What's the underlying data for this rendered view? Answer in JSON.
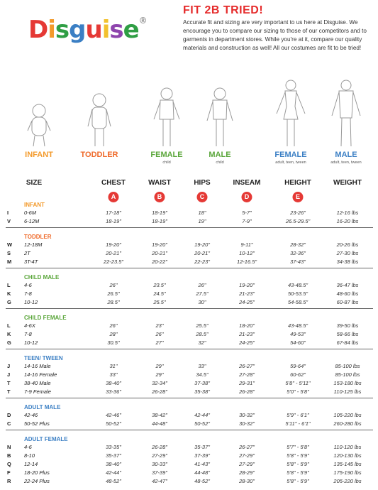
{
  "header": {
    "logo": "Disguise®",
    "title": "FIT 2B TRIED!",
    "text": "Accurate fit and sizing are very important to us here at Disguise. We encourage you to compare our sizing to those of our competitors and to garments in department stores. While you're at it, compare our quality materials and construction as well! All our costumes are fit to be tried!"
  },
  "figures": [
    {
      "label": "INFANT",
      "color": "#f39a2b"
    },
    {
      "label": "TODDLER",
      "color": "#ef6a2a"
    },
    {
      "label": "FEMALE",
      "sub": "child",
      "color": "#5aa63a"
    },
    {
      "label": "MALE",
      "sub": "child",
      "color": "#5aa63a"
    },
    {
      "label": "FEMALE",
      "sub": "adult, teen, tween",
      "color": "#3b7fc4"
    },
    {
      "label": "MALE",
      "sub": "adult, teen, tween",
      "color": "#3b7fc4"
    }
  ],
  "table": {
    "size_header": "SIZE",
    "columns": [
      {
        "name": "CHEST",
        "letter": "A"
      },
      {
        "name": "WAIST",
        "letter": "B"
      },
      {
        "name": "HIPS",
        "letter": "C"
      },
      {
        "name": "INSEAM",
        "letter": "D"
      },
      {
        "name": "HEIGHT",
        "letter": "E"
      },
      {
        "name": "WEIGHT"
      }
    ],
    "sections": [
      {
        "name": "INFANT",
        "color": "#f39a2b",
        "rows": [
          {
            "code": "I",
            "size": "0-6M",
            "values": [
              "17-18\"",
              "18-19\"",
              "18\"",
              "5-7\"",
              "23-26\"",
              "12-16 lbs"
            ]
          },
          {
            "code": "V",
            "size": "6-12M",
            "values": [
              "18-19\"",
              "18-19\"",
              "19\"",
              "7-9\"",
              "26.5-29.5\"",
              "16-20 lbs"
            ]
          }
        ]
      },
      {
        "name": "TODDLER",
        "color": "#ef6a2a",
        "rows": [
          {
            "code": "W",
            "size": "12-18M",
            "values": [
              "19-20\"",
              "19-20\"",
              "19-20\"",
              "9-11\"",
              "28-32\"",
              "20-26 lbs"
            ]
          },
          {
            "code": "S",
            "size": "2T",
            "values": [
              "20-21\"",
              "20-21\"",
              "20-21\"",
              "10-12\"",
              "32-36\"",
              "27-30 lbs"
            ]
          },
          {
            "code": "M",
            "size": "3T-4T",
            "values": [
              "22-23.5\"",
              "20-22\"",
              "22-23\"",
              "12-16.5\"",
              "37-43\"",
              "34-38 lbs"
            ]
          }
        ]
      },
      {
        "name": "CHILD MALE",
        "color": "#5aa63a",
        "rows": [
          {
            "code": "L",
            "size": "4-6",
            "values": [
              "26\"",
              "23.5\"",
              "26\"",
              "19-20\"",
              "43-48.5\"",
              "36-47 lbs"
            ]
          },
          {
            "code": "K",
            "size": "7-8",
            "values": [
              "26.5\"",
              "24.5\"",
              "27.5\"",
              "21-23\"",
              "50-53.5\"",
              "48-60 lbs"
            ]
          },
          {
            "code": "G",
            "size": "10-12",
            "values": [
              "28.5\"",
              "25.5\"",
              "30\"",
              "24-25\"",
              "54-58.5\"",
              "60-87 lbs"
            ]
          }
        ]
      },
      {
        "name": "CHILD FEMALE",
        "color": "#5aa63a",
        "rows": [
          {
            "code": "L",
            "size": "4-6X",
            "values": [
              "26\"",
              "23\"",
              "25.5\"",
              "18-20\"",
              "43-48.5\"",
              "39-50 lbs"
            ]
          },
          {
            "code": "K",
            "size": "7-8",
            "values": [
              "28\"",
              "26\"",
              "28.5\"",
              "21-23\"",
              "49-53\"",
              "58-66 lbs"
            ]
          },
          {
            "code": "G",
            "size": "10-12",
            "values": [
              "30.5\"",
              "27\"",
              "32\"",
              "24-25\"",
              "54-60\"",
              "67-84 lbs"
            ]
          }
        ]
      },
      {
        "name": "TEEN/ TWEEN",
        "color": "#3b7fc4",
        "rows": [
          {
            "code": "J",
            "size": "14-16 Male",
            "values": [
              "31\"",
              "29\"",
              "33\"",
              "26-27\"",
              "59-64\"",
              "85-100 lbs"
            ]
          },
          {
            "code": "J",
            "size": "14-16 Female",
            "values": [
              "33\"",
              "29\"",
              "34.5\"",
              "27-28\"",
              "60-62\"",
              "85-100 lbs"
            ]
          },
          {
            "code": "T",
            "size": "38-40 Male",
            "values": [
              "38-40\"",
              "32-34\"",
              "37-38\"",
              "29-31\"",
              "5'8\" - 5'11\"",
              "153-180 lbs"
            ]
          },
          {
            "code": "T",
            "size": "7-9 Female",
            "values": [
              "33-36\"",
              "26-28\"",
              "35-38\"",
              "26-28\"",
              "5'0\" - 5'8\"",
              "110-125 lbs"
            ]
          }
        ]
      },
      {
        "name": "ADULT MALE",
        "color": "#3b7fc4",
        "rows": [
          {
            "code": "D",
            "size": "42-46",
            "values": [
              "42-46\"",
              "38-42\"",
              "42-44\"",
              "30-32\"",
              "5'9\" - 6'1\"",
              "105-220 lbs"
            ]
          },
          {
            "code": "C",
            "size": "50-52 Plus",
            "values": [
              "50-52\"",
              "44-48\"",
              "50-52\"",
              "30-32\"",
              "5'11\" - 6'1\"",
              "260-280 lbs"
            ]
          }
        ]
      },
      {
        "name": "ADULT FEMALE",
        "color": "#3b7fc4",
        "rows": [
          {
            "code": "N",
            "size": "4-6",
            "values": [
              "33-35\"",
              "26-28\"",
              "35-37\"",
              "26-27\"",
              "5'7\" - 5'8\"",
              "110-120 lbs"
            ]
          },
          {
            "code": "B",
            "size": "8-10",
            "values": [
              "35-37\"",
              "27-29\"",
              "37-39\"",
              "27-29\"",
              "5'8\" - 5'9\"",
              "120-130 lbs"
            ]
          },
          {
            "code": "Q",
            "size": "12-14",
            "values": [
              "38-40\"",
              "30-33\"",
              "41-43\"",
              "27-29\"",
              "5'8\" - 5'9\"",
              "135-145 lbs"
            ]
          },
          {
            "code": "F",
            "size": "18-20 Plus",
            "values": [
              "42-44\"",
              "37-39\"",
              "44-48\"",
              "28-29\"",
              "5'8\" - 5'9\"",
              "175-190 lbs"
            ]
          },
          {
            "code": "R",
            "size": "22-24 Plus",
            "values": [
              "48-52\"",
              "42-47\"",
              "48-52\"",
              "28-30\"",
              "5'8\" - 5'9\"",
              "205-220 lbs"
            ]
          }
        ]
      }
    ]
  }
}
